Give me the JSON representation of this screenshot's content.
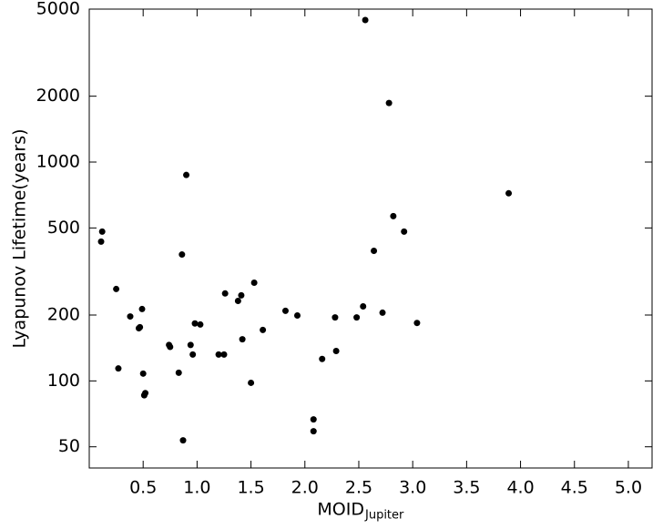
{
  "chart_data": {
    "type": "scatter",
    "xlabel": "MOID",
    "xlabel_subscript": "Jupiter",
    "ylabel": "Lyapunov Lifetime(years)",
    "log_y": true,
    "color": "#000000",
    "xlim": [
      0,
      5.22
    ],
    "ylim": [
      40,
      5000
    ],
    "xticks": [
      0.5,
      {
        "value": 1.0,
        "label": "1.0"
      },
      1.5,
      {
        "value": 2.0,
        "label": "2.0"
      },
      2.5,
      {
        "value": 3.0,
        "label": "3.0"
      },
      3.5,
      {
        "value": 4.0,
        "label": "4.0"
      },
      4.5,
      {
        "value": 5.0,
        "label": "5.0"
      }
    ],
    "yticks": [
      50,
      100,
      200,
      500,
      1000,
      2000,
      5000
    ],
    "series": [
      {
        "x": [
          0.12,
          0.11,
          0.25,
          0.27,
          0.38,
          0.49,
          0.46,
          0.47,
          0.5,
          0.51,
          0.52,
          0.86,
          0.9,
          0.87,
          0.83,
          0.74,
          0.75,
          0.94,
          0.96,
          0.98,
          1.03,
          1.2,
          1.25,
          1.26,
          1.38,
          1.41,
          1.42,
          1.53,
          1.5,
          1.61,
          1.82,
          1.93,
          2.08,
          2.08,
          2.16,
          2.28,
          2.29,
          2.48,
          2.54,
          2.56,
          2.78,
          2.82,
          2.64,
          2.72,
          2.92,
          3.04,
          3.89
        ],
        "values": [
          481,
          433,
          263,
          114,
          197,
          213,
          174,
          176,
          108,
          86,
          88,
          378,
          873,
          53.5,
          109,
          146,
          143,
          146,
          132,
          183,
          181,
          132,
          132,
          251,
          232,
          246,
          155,
          281,
          98,
          171,
          209,
          199,
          66.7,
          58.9,
          126,
          195,
          137,
          195,
          219,
          4457,
          1862,
          566,
          393,
          205,
          481,
          184,
          720
        ]
      }
    ]
  }
}
